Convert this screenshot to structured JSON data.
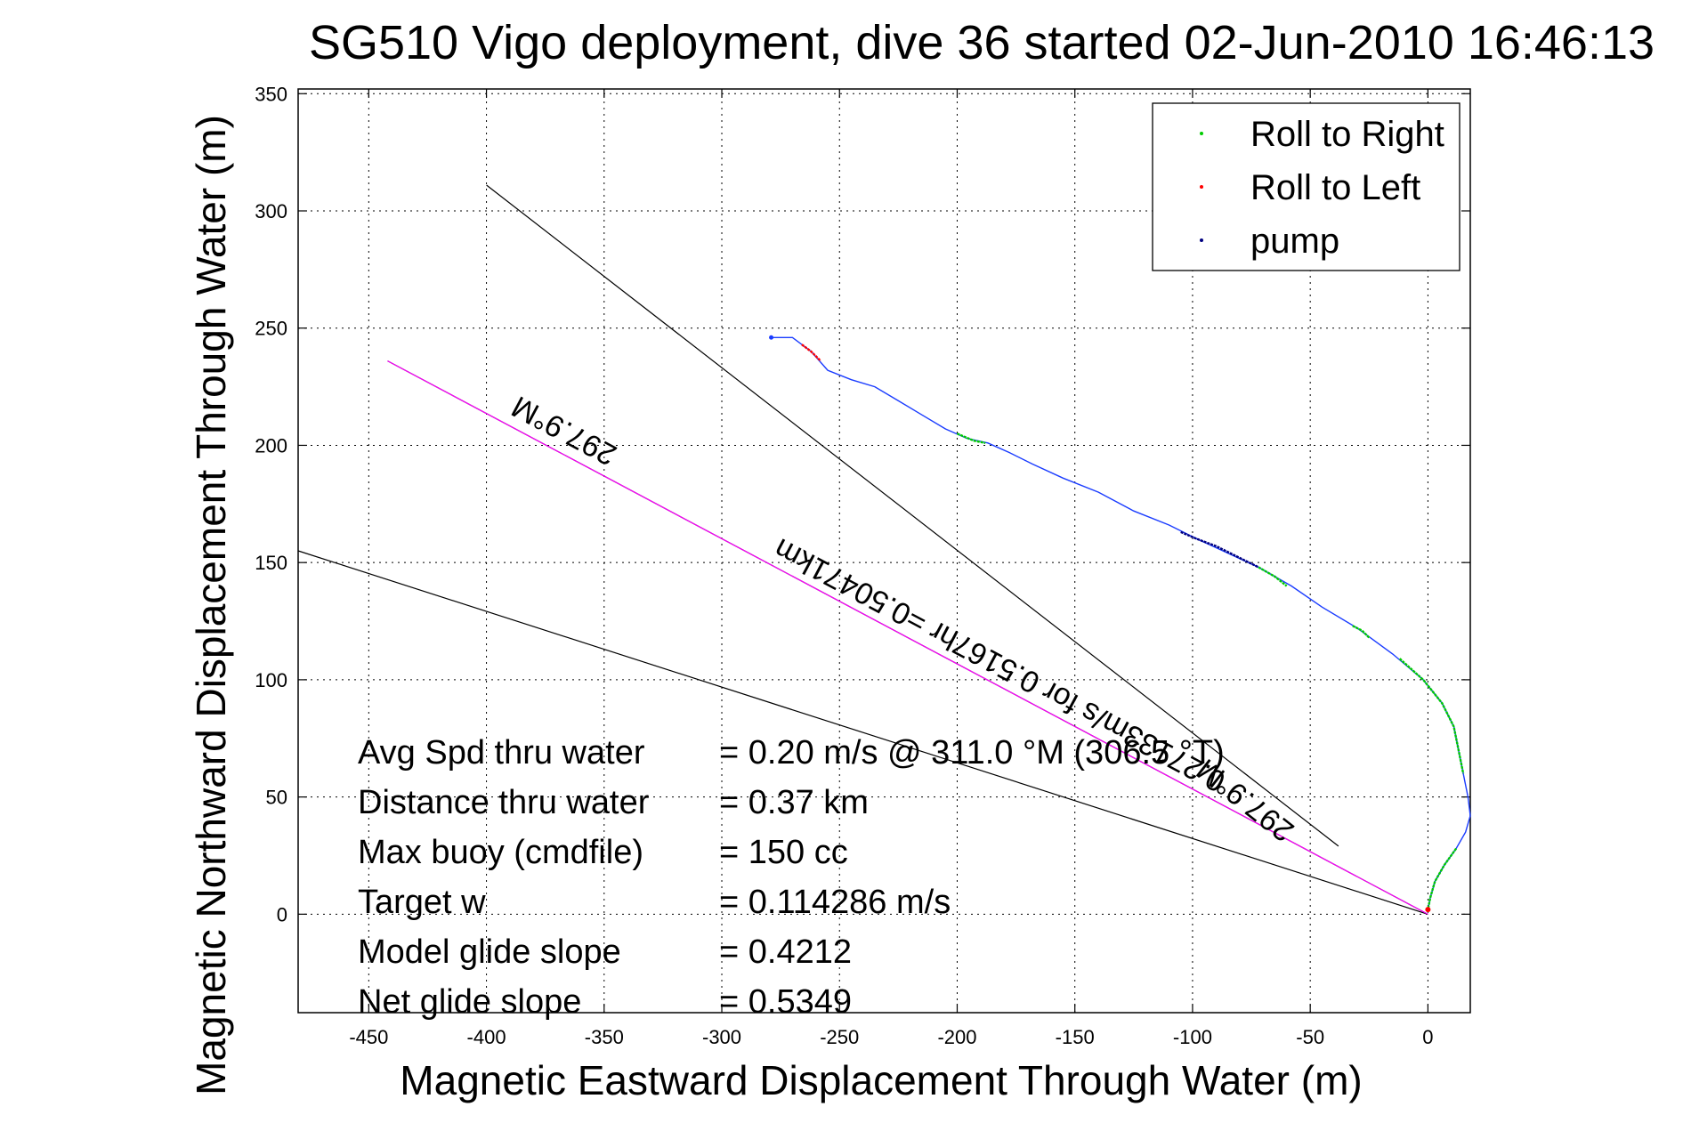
{
  "chart_data": {
    "type": "line",
    "title": "SG510 Vigo deployment, dive 36 started 02-Jun-2010 16:46:13",
    "xlabel": "Magnetic Eastward Displacement Through Water (m)",
    "ylabel": "Magnetic Northward Displacement Through Water (m)",
    "xlim": [
      -480,
      18
    ],
    "ylim": [
      -42,
      352
    ],
    "xticks": [
      -450,
      -400,
      -350,
      -300,
      -250,
      -200,
      -150,
      -100,
      -50,
      0
    ],
    "yticks": [
      0,
      50,
      100,
      150,
      200,
      250,
      300,
      350
    ],
    "xtick_labels": [
      "-450",
      "-400",
      "-350",
      "-300",
      "-250",
      "-200",
      "-150",
      "-100",
      "-50",
      "0"
    ],
    "ytick_labels": [
      "0",
      "50",
      "100",
      "150",
      "200",
      "250",
      "300",
      "350"
    ],
    "grid": true,
    "legend_position": "top-right",
    "legend": [
      {
        "label": "Roll to Right",
        "color": "#00cc00"
      },
      {
        "label": "Roll to Left",
        "color": "#ff0000"
      },
      {
        "label": "pump",
        "color": "#000080"
      }
    ],
    "track": [
      [
        -279,
        246
      ],
      [
        -270,
        246
      ],
      [
        -262,
        240
      ],
      [
        -255,
        232
      ],
      [
        -245,
        228
      ],
      [
        -235,
        225
      ],
      [
        -225,
        219
      ],
      [
        -215,
        213
      ],
      [
        -205,
        207
      ],
      [
        -196,
        203
      ],
      [
        -187,
        201
      ],
      [
        -178,
        197
      ],
      [
        -168,
        192
      ],
      [
        -155,
        186
      ],
      [
        -140,
        180
      ],
      [
        -125,
        172
      ],
      [
        -110,
        166
      ],
      [
        -98,
        160
      ],
      [
        -85,
        154
      ],
      [
        -72,
        148
      ],
      [
        -58,
        140
      ],
      [
        -45,
        131
      ],
      [
        -30,
        122
      ],
      [
        -15,
        111
      ],
      [
        -2,
        100
      ],
      [
        6,
        90
      ],
      [
        11,
        80
      ],
      [
        13,
        70
      ],
      [
        15,
        60
      ],
      [
        17,
        50
      ],
      [
        18,
        42
      ],
      [
        16,
        35
      ],
      [
        12,
        28
      ],
      [
        7,
        21
      ],
      [
        3,
        14
      ],
      [
        1,
        7
      ],
      [
        0,
        2
      ]
    ],
    "segments": [
      {
        "name": "Roll to Left",
        "color": "#ff0000",
        "points": [
          [
            -266,
            243
          ],
          [
            -262,
            240
          ],
          [
            -258,
            236
          ]
        ]
      },
      {
        "name": "Roll to Right",
        "color": "#00cc00",
        "points": [
          [
            -200,
            205
          ],
          [
            -193,
            202
          ],
          [
            -188,
            201
          ]
        ]
      },
      {
        "name": "pump",
        "color": "#000080",
        "points": [
          [
            -105,
            163
          ],
          [
            -98,
            160
          ],
          [
            -90,
            157
          ],
          [
            -80,
            152
          ],
          [
            -72,
            148
          ]
        ]
      },
      {
        "name": "Roll to Right",
        "color": "#00cc00",
        "points": [
          [
            -72,
            148
          ],
          [
            -65,
            144
          ],
          [
            -60,
            140
          ]
        ]
      },
      {
        "name": "Roll to Right",
        "color": "#00cc00",
        "points": [
          [
            -32,
            123
          ],
          [
            -28,
            121
          ],
          [
            -25,
            118
          ]
        ]
      },
      {
        "name": "Roll to Right",
        "color": "#00cc00",
        "points": [
          [
            -12,
            109
          ],
          [
            -2,
            100
          ],
          [
            6,
            90
          ],
          [
            11,
            80
          ],
          [
            13,
            70
          ],
          [
            15,
            60
          ]
        ]
      },
      {
        "name": "Roll to Right",
        "color": "#00cc00",
        "points": [
          [
            12,
            28
          ],
          [
            7,
            21
          ],
          [
            3,
            14
          ],
          [
            1,
            7
          ],
          [
            0,
            2
          ]
        ]
      }
    ],
    "reference_lines": [
      {
        "color": "#000000",
        "points": [
          [
            -400,
            311
          ],
          [
            -38,
            29
          ]
        ]
      },
      {
        "color": "#000000",
        "points": [
          [
            -480,
            155
          ],
          [
            0,
            0
          ]
        ]
      },
      {
        "color": "#000000",
        "points": [
          [
            -442,
            236
          ],
          [
            0,
            0
          ]
        ]
      },
      {
        "color": "#ff00ff",
        "points": [
          [
            -442,
            236
          ],
          [
            0,
            0
          ]
        ]
      }
    ],
    "annotations": [
      {
        "text": "297.9°M",
        "x": -365,
        "y": 210,
        "angle": 208
      },
      {
        "text": "0.27133m/s for 0.5167hr =0.50471km",
        "x": -180,
        "y": 110,
        "angle": 208
      },
      {
        "text": "297.9°M",
        "x": -75,
        "y": 52,
        "angle": 218
      }
    ],
    "stats": [
      {
        "label": "Avg Spd thru water",
        "value": "=  0.20 m/s @ 311.0 °M (306.5 °T)"
      },
      {
        "label": "Distance thru water",
        "value": "=  0.37 km"
      },
      {
        "label": "Max buoy (cmdfile)",
        "value": "= 150 cc"
      },
      {
        "label": "Target w",
        "value": "= 0.114286 m/s"
      },
      {
        "label": "Model glide slope",
        "value": "= 0.4212"
      },
      {
        "label": "Net glide slope",
        "value": "= 0.5349"
      }
    ],
    "colors": {
      "track": "#1a3cff",
      "grid": "#000000",
      "axes": "#000000"
    }
  }
}
